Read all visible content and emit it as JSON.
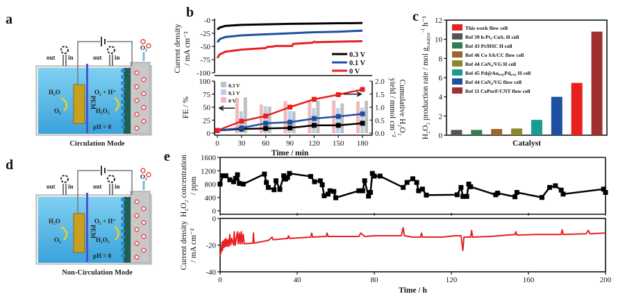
{
  "panels": {
    "a": "a",
    "b": "b",
    "c": "c",
    "d": "d",
    "e": "e"
  },
  "schematic": {
    "out": "out",
    "in": "in",
    "h2o": "H₂O",
    "o2": "O₂",
    "o2_h": "O₂ + H⁺",
    "h2o2": "H₂O₂",
    "pem": "PEM",
    "ph": "pH = 0",
    "o2_gas": "O₂",
    "mode_a": "Circulation Mode",
    "mode_d": "Non-Circulation Mode",
    "colors": {
      "electrolyte": "#4fb3e6",
      "anode": "#c8a020",
      "pem": "#4a55c8",
      "cathode": "#1f5f55",
      "chamber": "#c8c8c8",
      "bubble": "#e84848"
    }
  },
  "chart_data": [
    {
      "id": "b-top",
      "type": "line",
      "ylabel": "Current density",
      "ylabel2": "/ mA cm⁻²",
      "xlim": [
        0,
        180
      ],
      "ylim": [
        -100,
        0
      ],
      "yticks": [
        0,
        -25,
        -50,
        -75,
        -100
      ],
      "ytick_labels": [
        "-0",
        "-25",
        "-50",
        "-75",
        "-100"
      ],
      "legend_position": "bottom-right",
      "series": [
        {
          "name": "0.3 V",
          "color": "#000000",
          "points": [
            [
              0,
              -18
            ],
            [
              3,
              -14
            ],
            [
              10,
              -11
            ],
            [
              30,
              -9
            ],
            [
              60,
              -8
            ],
            [
              90,
              -7
            ],
            [
              120,
              -6.5
            ],
            [
              150,
              -6
            ],
            [
              180,
              -5.5
            ]
          ]
        },
        {
          "name": "0.1 V",
          "color": "#1f4fa0",
          "points": [
            [
              0,
              -42
            ],
            [
              3,
              -36
            ],
            [
              10,
              -32
            ],
            [
              30,
              -29
            ],
            [
              60,
              -27
            ],
            [
              90,
              -25
            ],
            [
              120,
              -23
            ],
            [
              150,
              -22
            ],
            [
              180,
              -20
            ]
          ]
        },
        {
          "name": "0 V",
          "color": "#e82020",
          "points": [
            [
              0,
              -72
            ],
            [
              3,
              -65
            ],
            [
              10,
              -60
            ],
            [
              30,
              -56
            ],
            [
              60,
              -53
            ],
            [
              62,
              -51
            ],
            [
              70,
              -50
            ],
            [
              72,
              -49
            ],
            [
              90,
              -49
            ],
            [
              93,
              -49
            ],
            [
              94,
              -45
            ],
            [
              118,
              -43
            ],
            [
              120,
              -41
            ],
            [
              122,
              -42
            ],
            [
              150,
              -41
            ],
            [
              180,
              -40
            ]
          ]
        }
      ]
    },
    {
      "id": "b-bottom",
      "type": "bar+line",
      "xlabel": "Time / min",
      "ylabel": "FE / %",
      "ylabel2_main": "Cumulative H₂O₂",
      "ylabel2_sub": "yield / mmol cm⁻²",
      "xlim": [
        0,
        180
      ],
      "xticks": [
        0,
        30,
        60,
        90,
        120,
        150,
        180
      ],
      "ylim": [
        0,
        100
      ],
      "yticks": [
        0,
        25,
        50,
        75,
        100
      ],
      "y2lim": [
        0,
        2.0
      ],
      "y2ticks": [
        "0.0",
        "0.5",
        "1.0",
        "1.5",
        "2.0"
      ],
      "legend_position": "top-left",
      "bars": [
        {
          "name": "0.3 V",
          "color": "#c0c0c0",
          "values": [
            69,
            51,
            42,
            62,
            57,
            62
          ]
        },
        {
          "name": "0.1 V",
          "color": "#b8d0ee",
          "values": [
            42,
            52,
            43,
            48,
            48,
            49
          ]
        },
        {
          "name": "0 V",
          "color": "#f4b8b8",
          "values": [
            68,
            55,
            62,
            60,
            63,
            61
          ]
        }
      ],
      "bar_x": [
        30,
        60,
        90,
        120,
        150,
        180
      ],
      "lines": [
        {
          "name": "0.3 V",
          "color": "#000000",
          "x": [
            0,
            30,
            60,
            90,
            120,
            150,
            180
          ],
          "y": [
            0.1,
            0.16,
            0.18,
            0.2,
            0.3,
            0.3,
            0.38
          ]
        },
        {
          "name": "0.1 V",
          "color": "#1f4fa0",
          "x": [
            0,
            30,
            60,
            90,
            120,
            150,
            180
          ],
          "y": [
            0.1,
            0.2,
            0.38,
            0.42,
            0.56,
            0.64,
            0.74
          ]
        },
        {
          "name": "0 V",
          "color": "#e82020",
          "x": [
            0,
            30,
            60,
            90,
            120,
            150,
            180
          ],
          "y": [
            0.1,
            0.46,
            0.66,
            1.0,
            1.3,
            1.48,
            1.68
          ]
        }
      ]
    },
    {
      "id": "c",
      "type": "bar",
      "xlabel": "Catalyst",
      "ylabel_main": "H₂O₂ production rate / mol g",
      "ylabel_sub": "catalyst",
      "ylabel_sup": "-1",
      "ylabel_end": " h⁻¹",
      "ylim": [
        0,
        12
      ],
      "yticks": [
        0,
        2,
        4,
        6,
        8,
        10,
        12
      ],
      "legend_position": "top-left",
      "legend": [
        {
          "label": "This work flow cell",
          "color": "#e82020"
        },
        {
          "label": "Ref 39  h-Pt₁-CuSₓ H cell",
          "color": "#555555"
        },
        {
          "label": "Ref 43  Pt/HSC H cell",
          "color": "#2e7d4f"
        },
        {
          "label": "Ref 46  Co SA/CC  flow cell",
          "color": "#a0642a"
        },
        {
          "label": "Ref 44  CoN₄/VG H cell",
          "color": "#8a8a2a"
        },
        {
          "label": "Ref 45  Pd@Au₀.₉₅Pd₀.₀₅ H cell",
          "color": "#1a9a90"
        },
        {
          "label": "Ref 44  CoN₄/VG flow cell",
          "color": "#1f4fa0"
        },
        {
          "label": "Ref 11  CoPorF/CNT flow cell",
          "color": "#a03030"
        }
      ],
      "bars": [
        {
          "label": "Ref 39",
          "color": "#555555",
          "value": 0.55
        },
        {
          "label": "Ref 43",
          "color": "#2e7d4f",
          "value": 0.55
        },
        {
          "label": "Ref 46",
          "color": "#a0642a",
          "value": 0.65
        },
        {
          "label": "Ref 44 H cell",
          "color": "#8a8a2a",
          "value": 0.7
        },
        {
          "label": "Ref 45",
          "color": "#1a9a90",
          "value": 1.6
        },
        {
          "label": "Ref 44 flow cell",
          "color": "#1f4fa0",
          "value": 4.0
        },
        {
          "label": "This work",
          "color": "#e82020",
          "value": 5.45
        },
        {
          "label": "Ref 11",
          "color": "#a03030",
          "value": 10.8
        }
      ]
    },
    {
      "id": "e-top",
      "type": "line",
      "ylabel_main": "H₂O₂ concentration",
      "ylabel2": "/ ppm",
      "xlim": [
        0,
        200
      ],
      "ylim": [
        0,
        1600
      ],
      "yticks": [
        0,
        400,
        800,
        1200,
        1600
      ],
      "color": "#000000",
      "points": [
        [
          0,
          800
        ],
        [
          1.5,
          1050
        ],
        [
          3,
          1050
        ],
        [
          5,
          930
        ],
        [
          7,
          870
        ],
        [
          8,
          970
        ],
        [
          9,
          1080
        ],
        [
          10,
          820
        ],
        [
          12,
          800
        ],
        [
          23,
          1100
        ],
        [
          24,
          850
        ],
        [
          25,
          700
        ],
        [
          28,
          630
        ],
        [
          29,
          900
        ],
        [
          31,
          640
        ],
        [
          33,
          1050
        ],
        [
          34,
          950
        ],
        [
          35,
          1000
        ],
        [
          36,
          1120
        ],
        [
          47,
          1030
        ],
        [
          49,
          870
        ],
        [
          52,
          900
        ],
        [
          53,
          780
        ],
        [
          54,
          450
        ],
        [
          56,
          500
        ],
        [
          57,
          600
        ],
        [
          59,
          580
        ],
        [
          60,
          390
        ],
        [
          72,
          600
        ],
        [
          74,
          600
        ],
        [
          75,
          900
        ],
        [
          77,
          440
        ],
        [
          78,
          550
        ],
        [
          79,
          1120
        ],
        [
          80,
          1040
        ],
        [
          83,
          1040
        ],
        [
          95,
          700
        ],
        [
          97,
          850
        ],
        [
          100,
          960
        ],
        [
          102,
          850
        ],
        [
          103,
          600
        ],
        [
          105,
          650
        ],
        [
          107,
          470
        ],
        [
          123,
          480
        ],
        [
          125,
          700
        ],
        [
          126,
          430
        ],
        [
          128,
          430
        ],
        [
          129,
          800
        ],
        [
          130,
          720
        ],
        [
          143,
          480
        ],
        [
          144,
          530
        ],
        [
          153,
          420
        ],
        [
          154,
          550
        ],
        [
          167,
          400
        ],
        [
          171,
          700
        ],
        [
          174,
          750
        ],
        [
          177,
          620
        ],
        [
          178,
          500
        ],
        [
          199,
          650
        ],
        [
          200,
          550
        ]
      ]
    },
    {
      "id": "e-bottom",
      "type": "line",
      "xlabel": "Time / h",
      "ylabel": "Current density",
      "ylabel2": "/ mA cm⁻²",
      "xlim": [
        0,
        200
      ],
      "xticks": [
        0,
        40,
        80,
        120,
        160,
        200
      ],
      "ylim": [
        -40,
        0
      ],
      "yticks": [
        0,
        -20,
        -40
      ],
      "color": "#e82020",
      "points": [
        [
          0,
          -28
        ],
        [
          0.5,
          -25
        ],
        [
          1,
          -18
        ],
        [
          1.2,
          -24
        ],
        [
          1.5,
          -17
        ],
        [
          2,
          -22
        ],
        [
          2.3,
          -16
        ],
        [
          2.7,
          -21
        ],
        [
          3,
          -15
        ],
        [
          3.5,
          -21
        ],
        [
          4,
          -16
        ],
        [
          4.5,
          -21
        ],
        [
          5,
          -12
        ],
        [
          5.5,
          -20
        ],
        [
          6,
          -15
        ],
        [
          7,
          -20
        ],
        [
          7.3,
          -10
        ],
        [
          7.8,
          -20
        ],
        [
          9,
          -10
        ],
        [
          9.4,
          -19
        ],
        [
          10,
          -11
        ],
        [
          10.4,
          -19
        ],
        [
          11,
          -10
        ],
        [
          11.4,
          -19
        ],
        [
          12,
          -12
        ],
        [
          12.5,
          -19
        ],
        [
          17,
          -18.5
        ],
        [
          17.3,
          -11
        ],
        [
          17.6,
          -18.5
        ],
        [
          25,
          -16.5
        ],
        [
          27,
          -14
        ],
        [
          27.5,
          -16
        ],
        [
          35,
          -15
        ],
        [
          35.5,
          -13
        ],
        [
          36,
          -15
        ],
        [
          47,
          -14
        ],
        [
          47.5,
          -11
        ],
        [
          48,
          -14
        ],
        [
          55,
          -13.5
        ],
        [
          55.5,
          -11
        ],
        [
          56,
          -13.5
        ],
        [
          72,
          -13.5
        ],
        [
          73,
          -11
        ],
        [
          75,
          -13.5
        ],
        [
          80,
          -13
        ],
        [
          90,
          -13
        ],
        [
          94,
          -13
        ],
        [
          95,
          -7
        ],
        [
          95.6,
          -13
        ],
        [
          100,
          -14
        ],
        [
          104,
          -14
        ],
        [
          104.5,
          -11
        ],
        [
          105,
          -14
        ],
        [
          115,
          -14
        ],
        [
          122,
          -13
        ],
        [
          125,
          -13
        ],
        [
          126,
          -24
        ],
        [
          126.5,
          -14
        ],
        [
          130,
          -14
        ],
        [
          130.5,
          -9
        ],
        [
          131,
          -14
        ],
        [
          140,
          -13.5
        ],
        [
          145,
          -13
        ],
        [
          153,
          -12
        ],
        [
          153.5,
          -10
        ],
        [
          154,
          -12.5
        ],
        [
          165,
          -12
        ],
        [
          177,
          -12
        ],
        [
          177.5,
          -8.5
        ],
        [
          178,
          -12
        ],
        [
          190,
          -11.5
        ],
        [
          191,
          -9
        ],
        [
          192,
          -11.5
        ],
        [
          200,
          -11
        ]
      ]
    }
  ]
}
